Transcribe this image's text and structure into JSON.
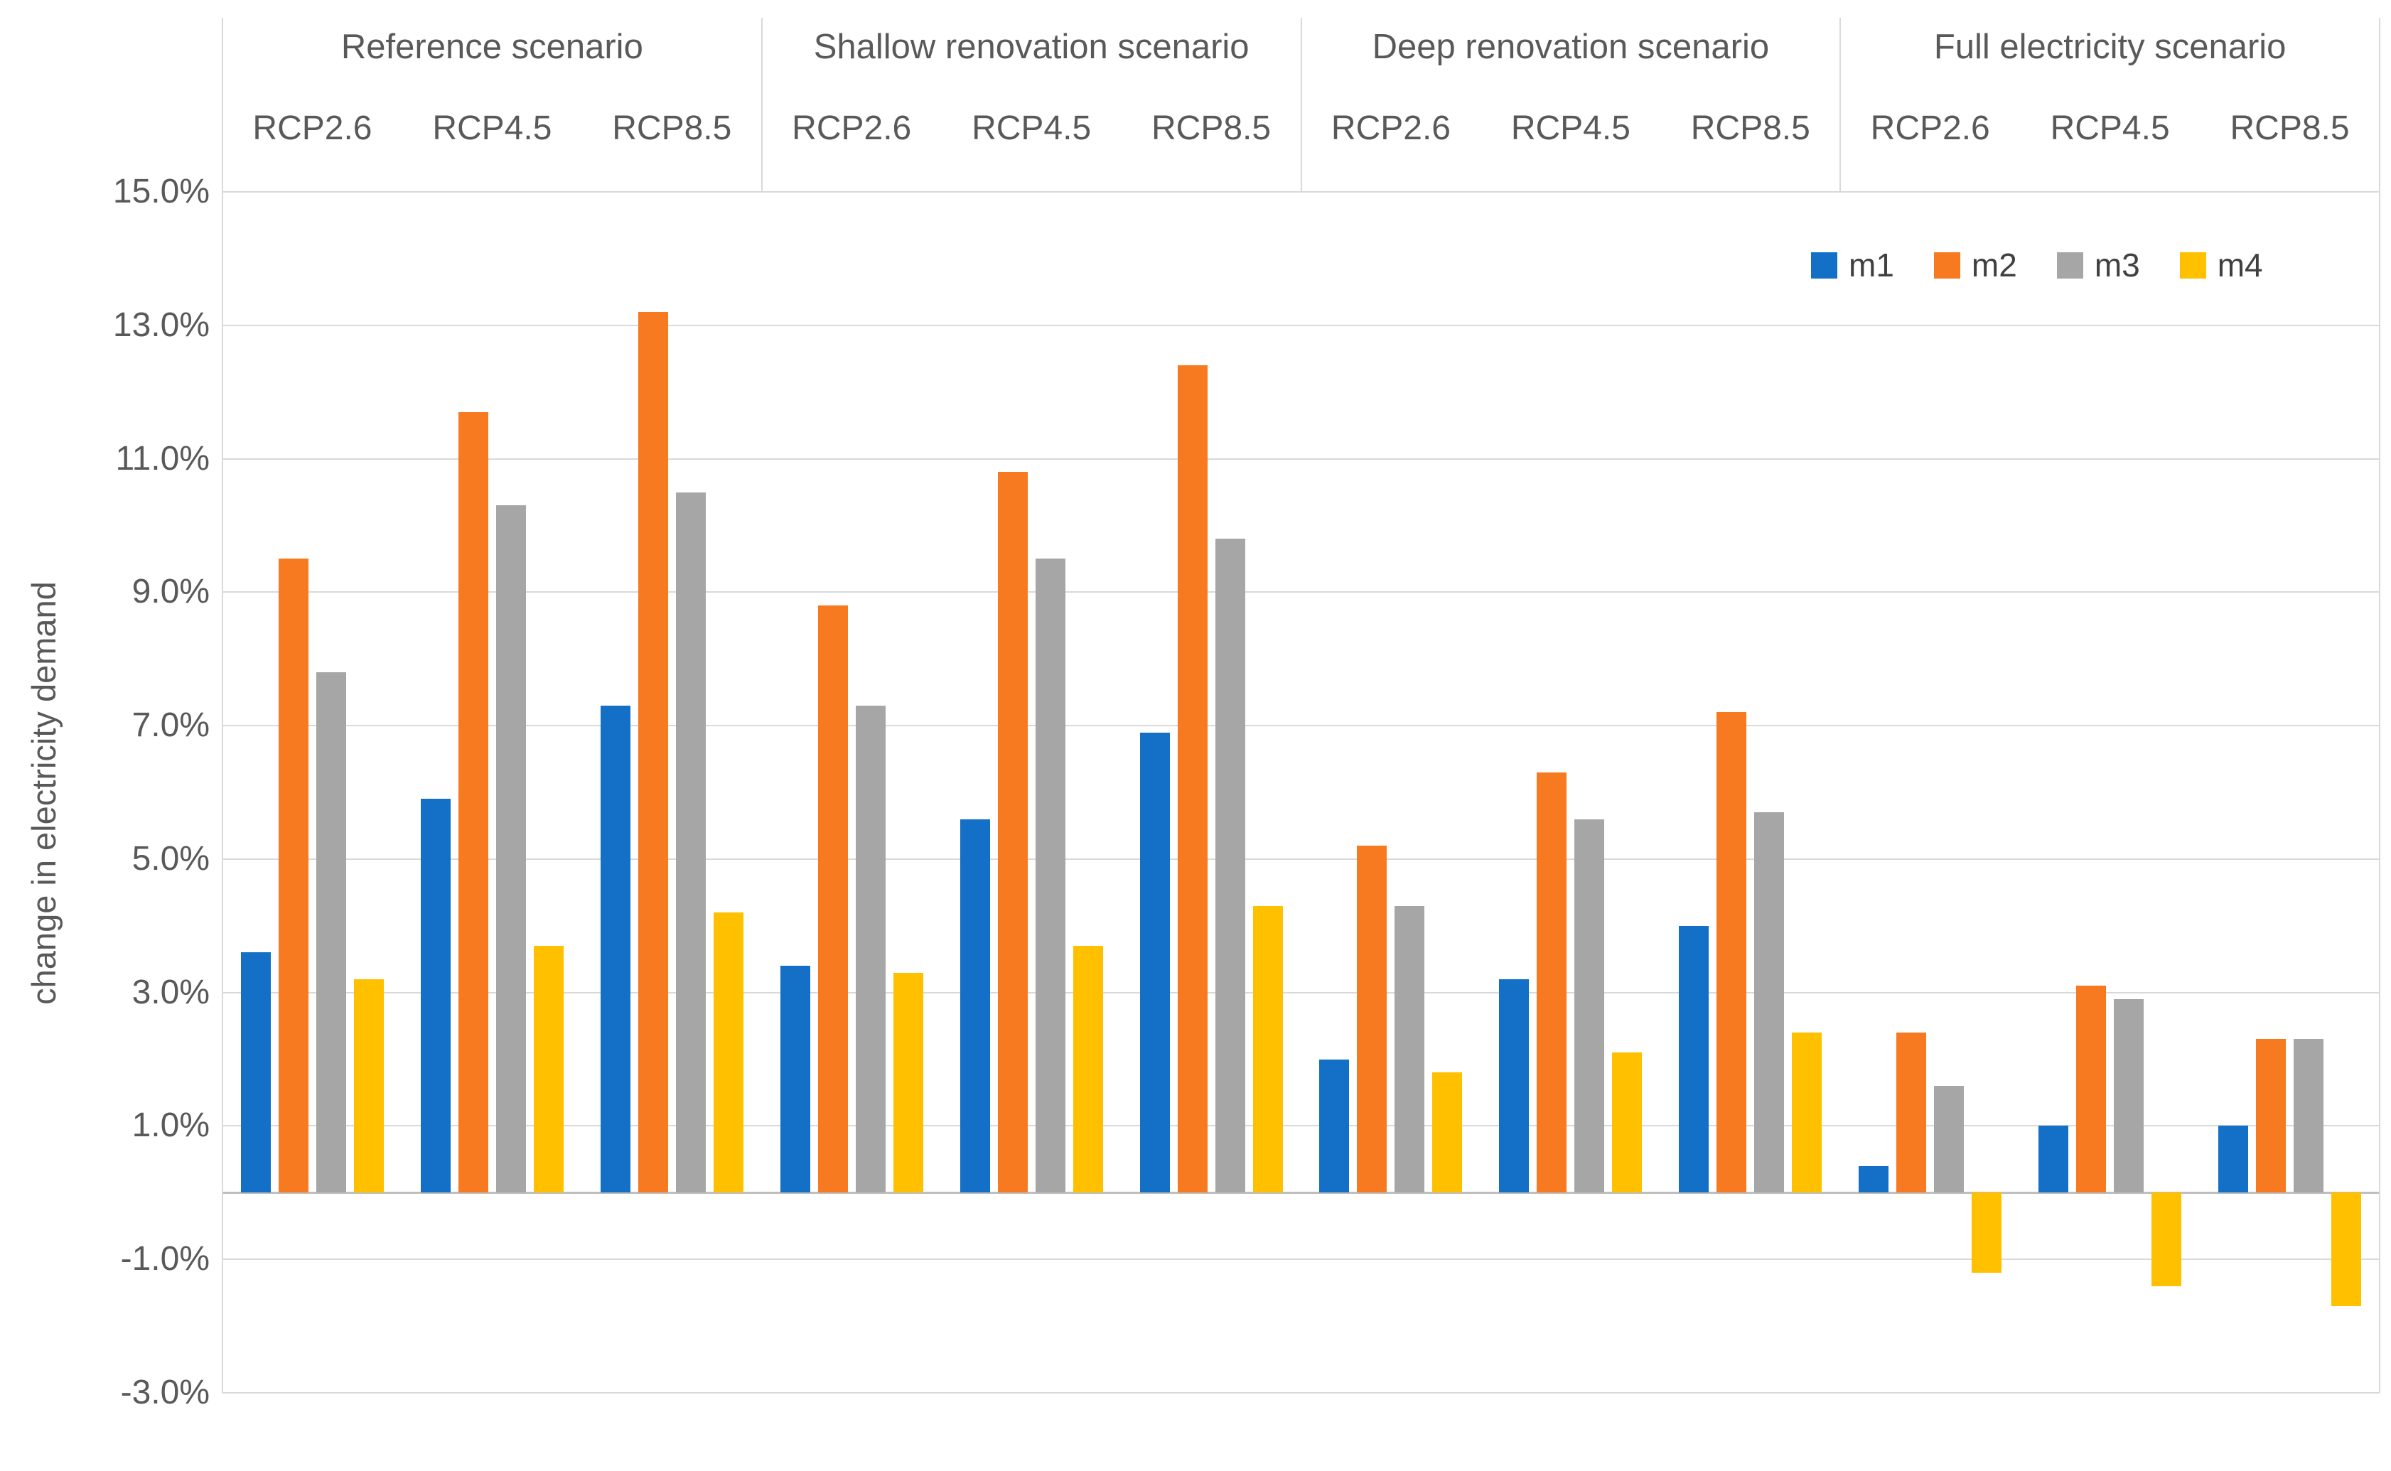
{
  "chart_data": {
    "type": "bar",
    "title": "",
    "ylabel": "change in electricity demand",
    "ylim": [
      -3,
      15
    ],
    "ytick_step": 2,
    "yticks": [
      15,
      13,
      11,
      9,
      7,
      5,
      3,
      1,
      -1,
      -3
    ],
    "ytick_labels": [
      "15.0%",
      "13.0%",
      "11.0%",
      "9.0%",
      "7.0%",
      "5.0%",
      "3.0%",
      "1.0%",
      "-1.0%",
      "-3.0%"
    ],
    "grid": true,
    "legend_position": "top-right",
    "legend": [
      "m1",
      "m2",
      "m3",
      "m4"
    ],
    "series_names": [
      "m1",
      "m2",
      "m3",
      "m4"
    ],
    "series_colors": {
      "m1": "#1470c6",
      "m2": "#f87a20",
      "m3": "#a6a6a6",
      "m4": "#ffc000"
    },
    "scenarios": [
      {
        "label": "Reference scenario",
        "groups": [
          {
            "label": "RCP2.6",
            "values": [
              3.6,
              9.5,
              7.8,
              3.2
            ]
          },
          {
            "label": "RCP4.5",
            "values": [
              5.9,
              11.7,
              10.3,
              3.7
            ]
          },
          {
            "label": "RCP8.5",
            "values": [
              7.3,
              13.2,
              10.5,
              4.2
            ]
          }
        ]
      },
      {
        "label": "Shallow renovation scenario",
        "groups": [
          {
            "label": "RCP2.6",
            "values": [
              3.4,
              8.8,
              7.3,
              3.3
            ]
          },
          {
            "label": "RCP4.5",
            "values": [
              5.6,
              10.8,
              9.5,
              3.7
            ]
          },
          {
            "label": "RCP8.5",
            "values": [
              6.9,
              12.4,
              9.8,
              4.3
            ]
          }
        ]
      },
      {
        "label": "Deep renovation scenario",
        "groups": [
          {
            "label": "RCP2.6",
            "values": [
              2.0,
              5.2,
              4.3,
              1.8
            ]
          },
          {
            "label": "RCP4.5",
            "values": [
              3.2,
              6.3,
              5.6,
              2.1
            ]
          },
          {
            "label": "RCP8.5",
            "values": [
              4.0,
              7.2,
              5.7,
              2.4
            ]
          }
        ]
      },
      {
        "label": "Full electricity scenario",
        "groups": [
          {
            "label": "RCP2.6",
            "values": [
              0.4,
              2.4,
              1.6,
              -1.2
            ]
          },
          {
            "label": "RCP4.5",
            "values": [
              1.0,
              3.1,
              2.9,
              -1.4
            ]
          },
          {
            "label": "RCP8.5",
            "values": [
              1.0,
              2.3,
              2.3,
              -1.7
            ]
          }
        ]
      }
    ]
  }
}
